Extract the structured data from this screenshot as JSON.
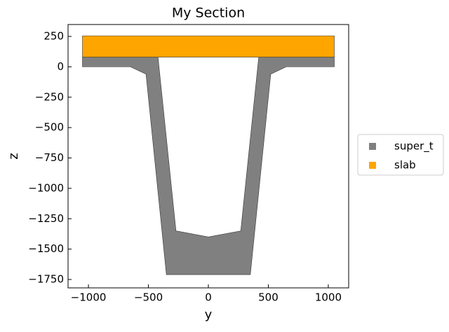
{
  "chart_data": {
    "type": "polygon",
    "title": "My Section",
    "x_label": "y",
    "y_label": "z",
    "xlim": [
      -1170,
      1170
    ],
    "ylim": [
      -1819,
      348
    ],
    "xticks": [
      {
        "value": -1000,
        "label": "−1000"
      },
      {
        "value": -500,
        "label": "−500"
      },
      0,
      500,
      1000
    ],
    "yticks": [
      250,
      0,
      {
        "value": -250,
        "label": "−250"
      },
      {
        "value": -500,
        "label": "−500"
      },
      {
        "value": -750,
        "label": "−750"
      },
      {
        "value": -1000,
        "label": "−1000"
      },
      {
        "value": -1250,
        "label": "−1250"
      },
      {
        "value": -1500,
        "label": "−1500"
      },
      {
        "value": -1750,
        "label": "−1750"
      }
    ],
    "legend": "outside-right",
    "series": [
      {
        "name": "super_t",
        "color": "#808080",
        "x": [
          -1050,
          -1050,
          -650,
          -520,
          -350,
          350,
          520,
          650,
          1050,
          1050,
          null,
          -420,
          -270,
          0,
          270,
          420
        ],
        "values": [
          80,
          0,
          0,
          -60,
          -1710,
          -1710,
          -60,
          0,
          0,
          80,
          null,
          80,
          -1350,
          -1400,
          -1350,
          80
        ]
      },
      {
        "name": "slab",
        "color": "#ffa500",
        "x": [
          -1050,
          1050,
          1050,
          -1050
        ],
        "values": [
          80,
          80,
          255,
          255
        ]
      }
    ]
  }
}
